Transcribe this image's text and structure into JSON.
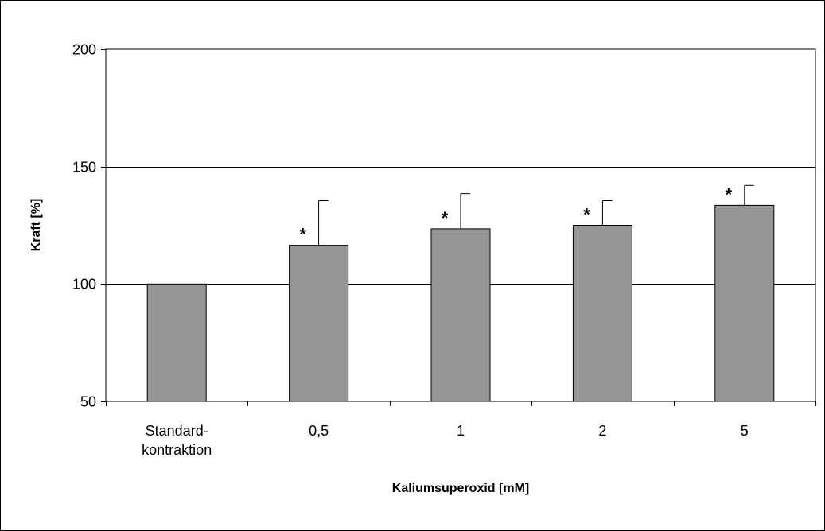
{
  "chart_data": {
    "type": "bar",
    "title": "",
    "xlabel": "Kaliumsuperoxid [mM]",
    "ylabel": "Kraft [%]",
    "categories": [
      [
        "Standard-",
        "kontraktion"
      ],
      [
        "0,5"
      ],
      [
        "1"
      ],
      [
        "2"
      ],
      [
        "5"
      ]
    ],
    "values": [
      100,
      116.5,
      123.5,
      125,
      133.5
    ],
    "error_plus": [
      0,
      19,
      15,
      10.5,
      8.5
    ],
    "significance": [
      "",
      "*",
      "*",
      "*",
      "*"
    ],
    "ylim": [
      50,
      200
    ],
    "yticks": [
      50,
      100,
      150,
      200
    ],
    "grid": true,
    "bar_color": "#969696",
    "legend": "none"
  }
}
